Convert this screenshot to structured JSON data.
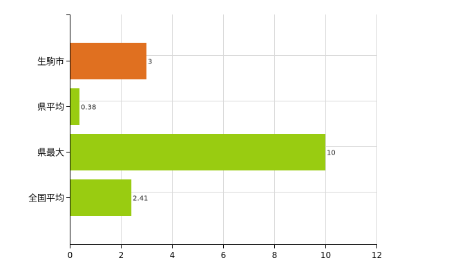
{
  "chart_data": {
    "type": "bar",
    "orientation": "horizontal",
    "categories": [
      "生駒市",
      "県平均",
      "県最大",
      "全国平均"
    ],
    "values": [
      3,
      0.38,
      10,
      2.41
    ],
    "data_labels": [
      "3",
      "0.38",
      "10",
      "2.41"
    ],
    "bar_colors": [
      "#e07020",
      "#99cc11",
      "#99cc11",
      "#99cc11"
    ],
    "xlim": [
      0,
      12
    ],
    "x_ticks": [
      0,
      2,
      4,
      6,
      8,
      10,
      12
    ],
    "x_tick_labels": [
      "0",
      "2",
      "4",
      "6",
      "8",
      "10",
      "12"
    ],
    "grid": true,
    "grid_color": "#d9d9d9",
    "title": "",
    "xlabel": "",
    "ylabel": ""
  }
}
